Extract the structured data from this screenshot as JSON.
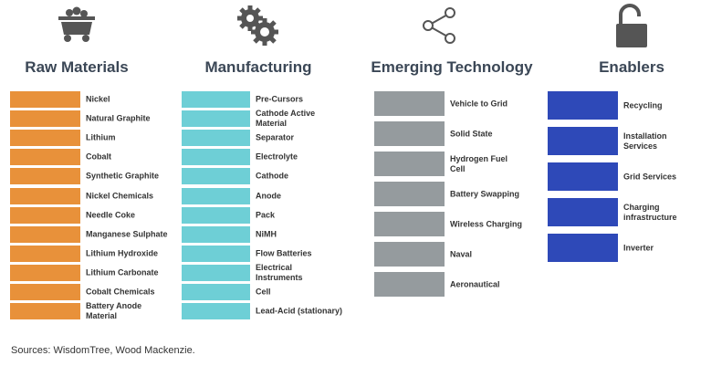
{
  "columns": [
    {
      "title": "Raw Materials",
      "color": "#e8913a",
      "items": [
        "Nickel",
        "Natural Graphite",
        "Lithium",
        "Cobalt",
        "Synthetic Graphite",
        "Nickel Chemicals",
        "Needle Coke",
        "Manganese Sulphate",
        "Lithium Hydroxide",
        "Lithium Carbonate",
        "Cobalt Chemicals",
        "Battery Anode\nMaterial"
      ]
    },
    {
      "title": "Manufacturing",
      "color": "#6ecfd6",
      "items": [
        "Pre-Cursors",
        "Cathode Active\nMaterial",
        "Separator",
        "Electrolyte",
        "Cathode",
        "Anode",
        "Pack",
        "NiMH",
        "Flow Batteries",
        "Electrical\nInstruments",
        "Cell",
        "Lead-Acid (stationary)"
      ]
    },
    {
      "title": "Emerging Technology",
      "color": "#959b9e",
      "items": [
        "Vehicle to Grid",
        "Solid State",
        "Hydrogen Fuel\nCell",
        "Battery Swapping",
        "Wireless Charging",
        "Naval",
        "Aeronautical"
      ]
    },
    {
      "title": "Enablers",
      "color": "#2e49b8",
      "items": [
        "Recycling",
        "Installation Services",
        "Grid Services",
        "Charging\ninfrastructure",
        "Inverter"
      ]
    }
  ],
  "source": "Sources: WisdomTree, Wood Mackenzie."
}
